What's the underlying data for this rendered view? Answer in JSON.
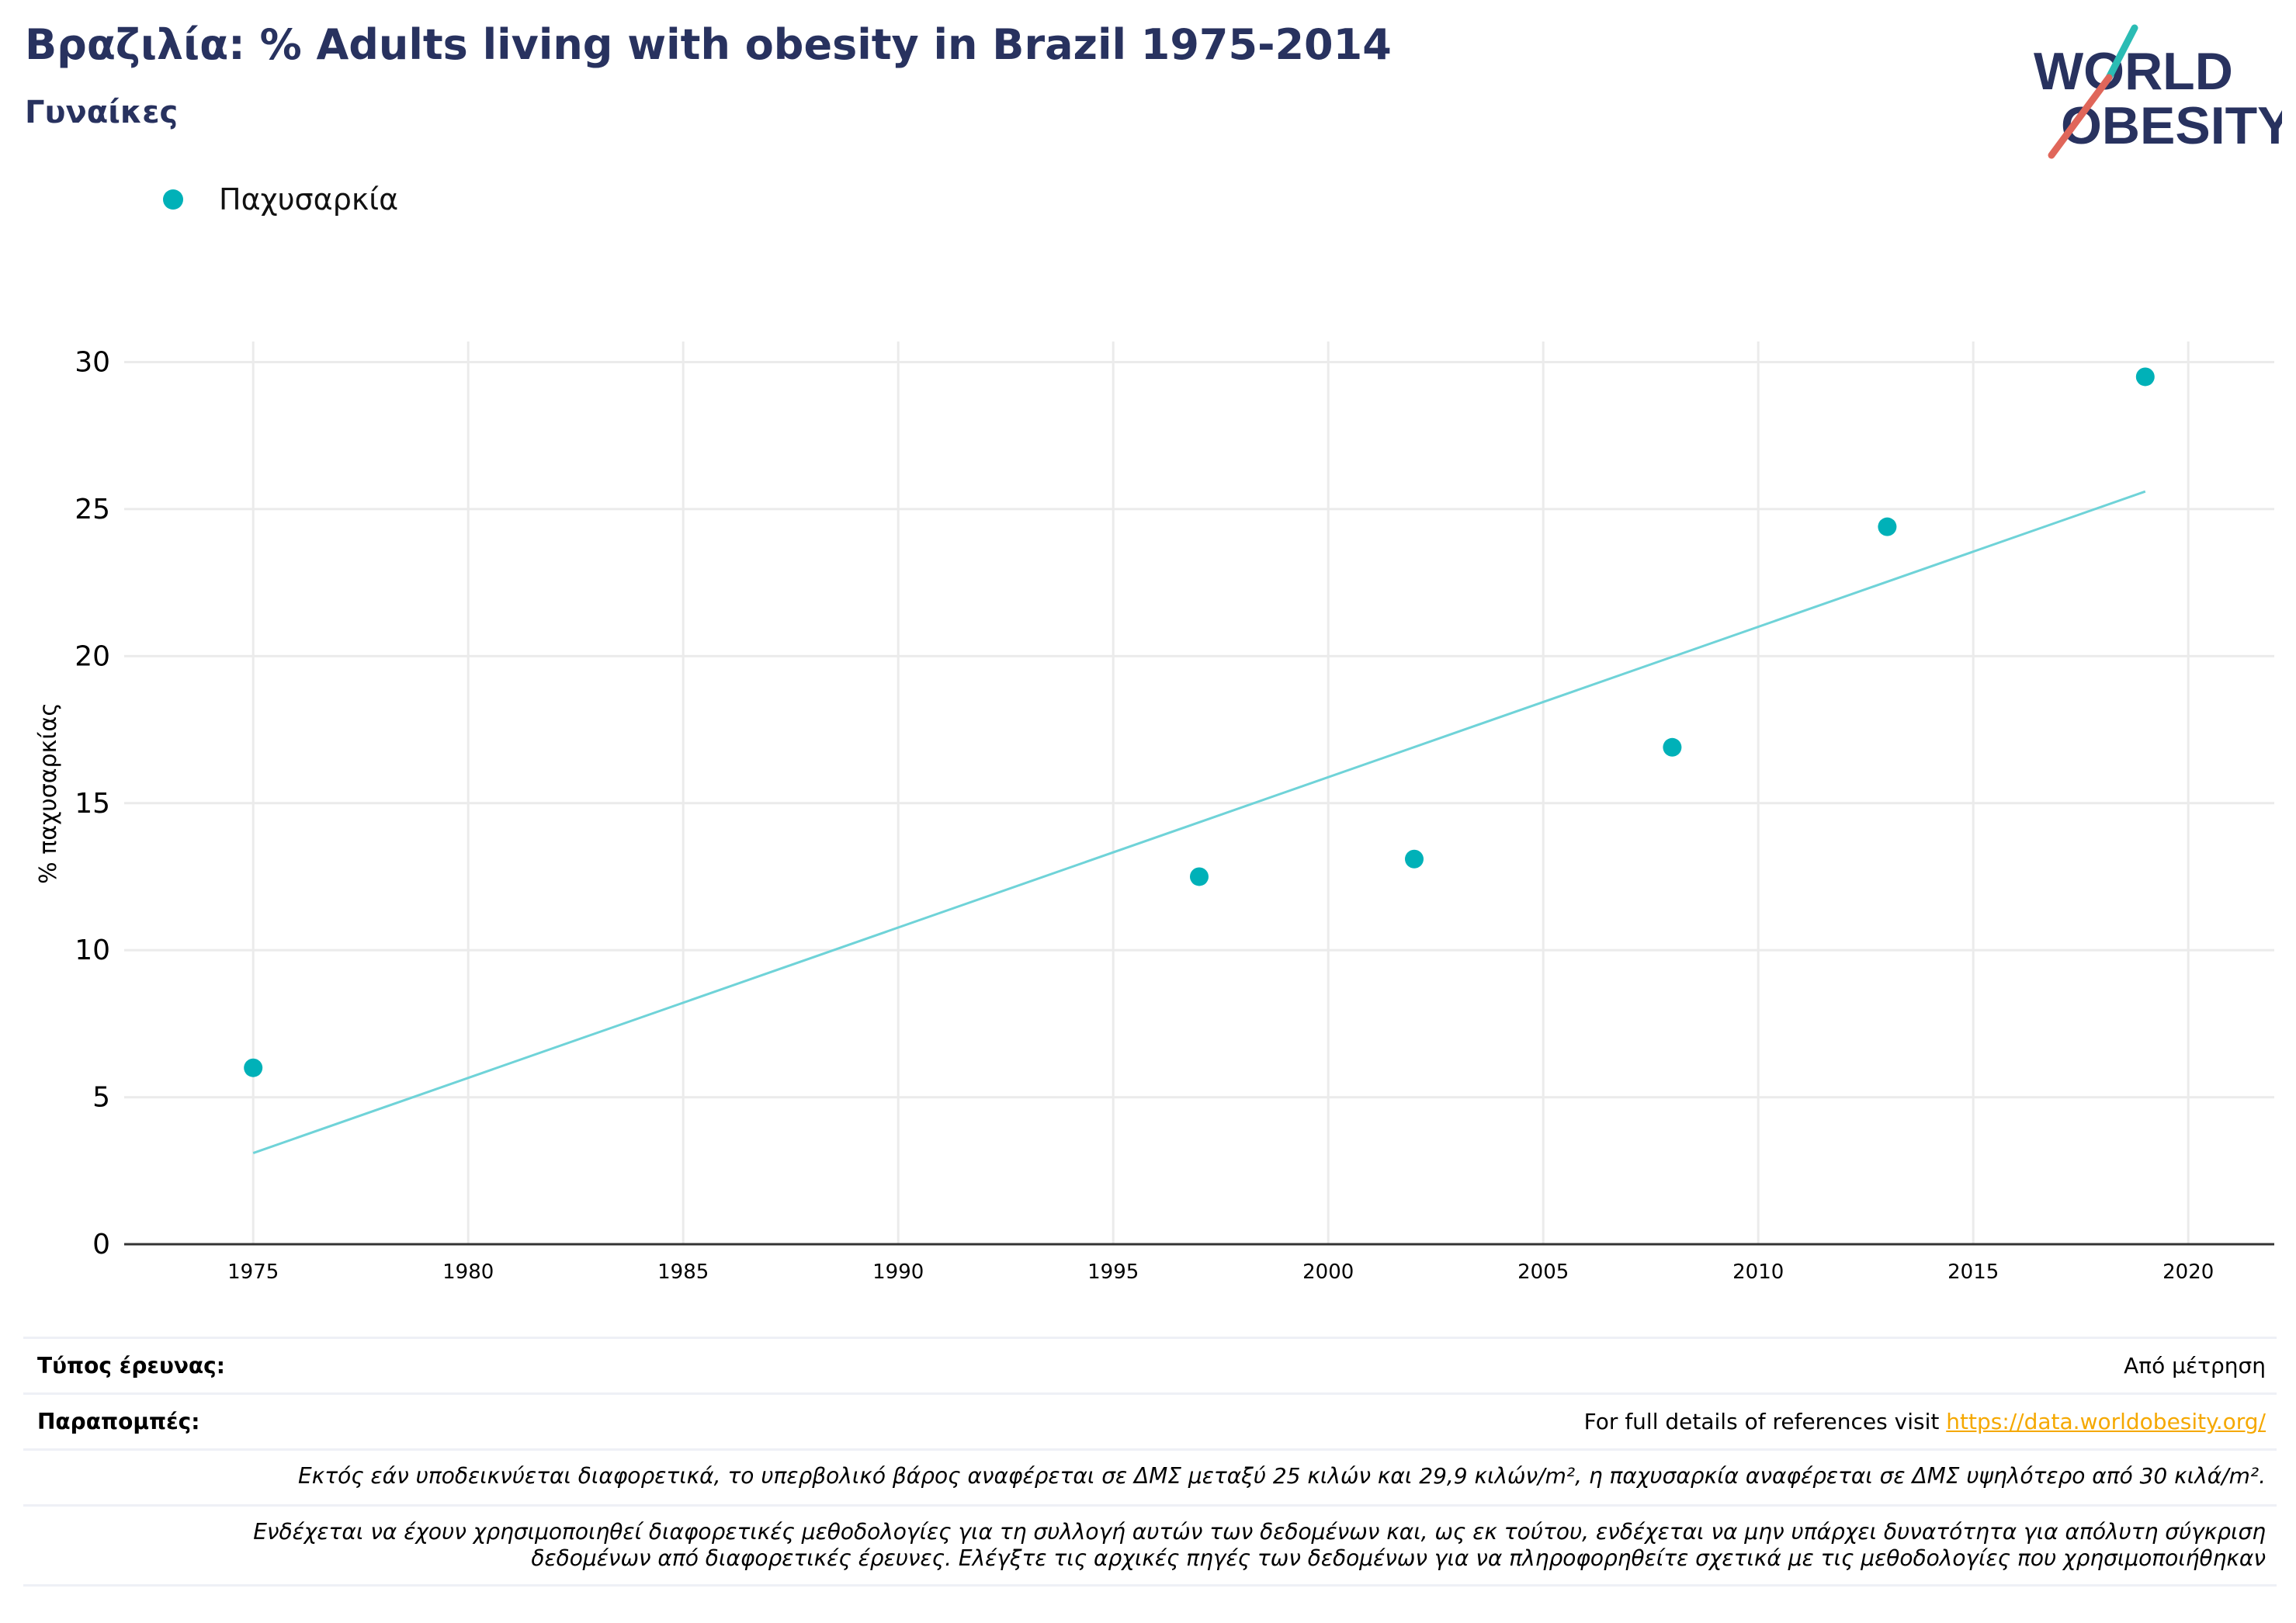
{
  "header": {
    "title": "Βραζιλία: % Adults living with obesity in Brazil 1975-2014",
    "subtitle": "Γυναίκες"
  },
  "logo": {
    "line1": "WORLD",
    "line2": "OBESITY"
  },
  "colors": {
    "title": "#28325f",
    "points": "#00b1b8",
    "trendline": "#6fd3d8",
    "link": "#f5a800",
    "logo_slash_teal": "#2bbcb4",
    "logo_slash_red": "#e0665a",
    "grid": "#ebebeb"
  },
  "chart_data": {
    "type": "scatter",
    "title": "Βραζιλία: % Adults living with obesity in Brazil 1975-2014",
    "subtitle": "Γυναίκες",
    "ylabel": "% παχυσαρκίας",
    "xlabel": "",
    "xlim": [
      1972,
      2022
    ],
    "ylim": [
      0,
      30.7
    ],
    "x_ticks": [
      1975,
      1980,
      1985,
      1990,
      1995,
      2000,
      2005,
      2010,
      2015,
      2020
    ],
    "y_ticks": [
      0,
      5,
      10,
      15,
      20,
      25,
      30
    ],
    "grid": true,
    "legend_position": "top-left",
    "series": [
      {
        "name": "Παχυσαρκία",
        "x": [
          1975,
          1997,
          2002,
          2008,
          2013,
          2019
        ],
        "y": [
          6.0,
          12.5,
          13.1,
          16.9,
          24.4,
          29.5
        ]
      }
    ],
    "trendline": {
      "x": [
        1975,
        2019
      ],
      "y": [
        3.1,
        25.6
      ]
    }
  },
  "info": {
    "survey_type_label": "Τύπος έρευνας:",
    "survey_type_value": "Από μέτρηση",
    "references_label": "Παραπομπές:",
    "references_text": "For full details of references visit ",
    "references_link": "https://data.worldobesity.org/",
    "note1": "Εκτός εάν υποδεικνύεται διαφορετικά, το υπερβολικό βάρος αναφέρεται σε ΔΜΣ μεταξύ 25 κιλών και 29,9 κιλών/m², η παχυσαρκία αναφέρεται σε ΔΜΣ υψηλότερο από 30 κιλά/m².",
    "note2_line1": "Ενδέχεται να έχουν χρησιμοποιηθεί διαφορετικές μεθοδολογίες για τη συλλογή αυτών των δεδομένων και, ως εκ τούτου, ενδέχεται να μην υπάρχει δυνατότητα για απόλυτη σύγκριση",
    "note2_line2": "δεδομένων από διαφορετικές έρευνες. Ελέγξτε τις αρχικές πηγές των δεδομένων για να πληροφορηθείτε σχετικά με τις μεθοδολογίες που χρησιμοποιήθηκαν"
  }
}
